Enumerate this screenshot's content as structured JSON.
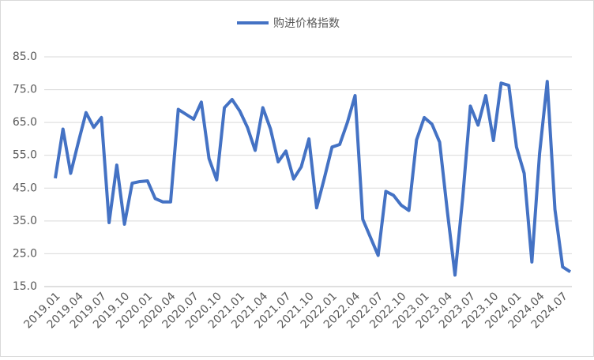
{
  "chart_data": {
    "type": "line",
    "categories": [
      "2019.01",
      null,
      null,
      "2019.04",
      null,
      null,
      "2019.07",
      null,
      null,
      "2019.10",
      null,
      null,
      "2020.01",
      null,
      null,
      "2020.04",
      null,
      null,
      "2020.07",
      null,
      null,
      "2020.10",
      null,
      null,
      "2021.01",
      null,
      null,
      "2021.04",
      null,
      null,
      "2021.07",
      null,
      null,
      "2021.10",
      null,
      null,
      "2022.01",
      null,
      null,
      "2022.04",
      null,
      null,
      "2022.07",
      null,
      null,
      "2022.10",
      null,
      null,
      "2023.01",
      null,
      null,
      "2023.04",
      null,
      null,
      "2023.07",
      null,
      null,
      "2023.10",
      null,
      null,
      "2024.01",
      null,
      null,
      "2024.04",
      null,
      null,
      "2024.07",
      null
    ],
    "series": [
      {
        "name": "购进价格指数",
        "color": "#4472c4",
        "values": [
          48,
          63,
          49.5,
          59,
          68,
          63.5,
          66.5,
          34.5,
          52,
          34,
          46.5,
          47,
          47.2,
          41.8,
          40.8,
          40.8,
          69,
          67.5,
          66,
          71.2,
          54,
          47.5,
          69.5,
          72,
          68.5,
          63.5,
          56.5,
          69.5,
          63,
          53,
          56.3,
          47.8,
          51.5,
          60,
          39,
          48,
          57.5,
          58.3,
          65,
          73.2,
          35.5,
          30,
          24.5,
          44,
          42.8,
          39.8,
          38.2,
          59.7,
          66.5,
          64.5,
          59,
          38,
          18.5,
          42,
          70,
          64.2,
          73.2,
          59.5,
          77,
          76.3,
          57.5,
          49.5,
          22.5,
          55.5,
          77.5,
          38.5,
          21,
          19.5
        ]
      }
    ],
    "ylim": [
      15,
      85
    ],
    "yticks": [
      {
        "value": 15,
        "label": "15.0"
      },
      {
        "value": 25,
        "label": "25.0"
      },
      {
        "value": 35,
        "label": "35.0"
      },
      {
        "value": 45,
        "label": "45.0"
      },
      {
        "value": 55,
        "label": "55.0"
      },
      {
        "value": 65,
        "label": "65.0"
      },
      {
        "value": 75,
        "label": "75.0"
      },
      {
        "value": 85,
        "label": "85.0"
      }
    ],
    "grid": true,
    "legend": "top"
  }
}
